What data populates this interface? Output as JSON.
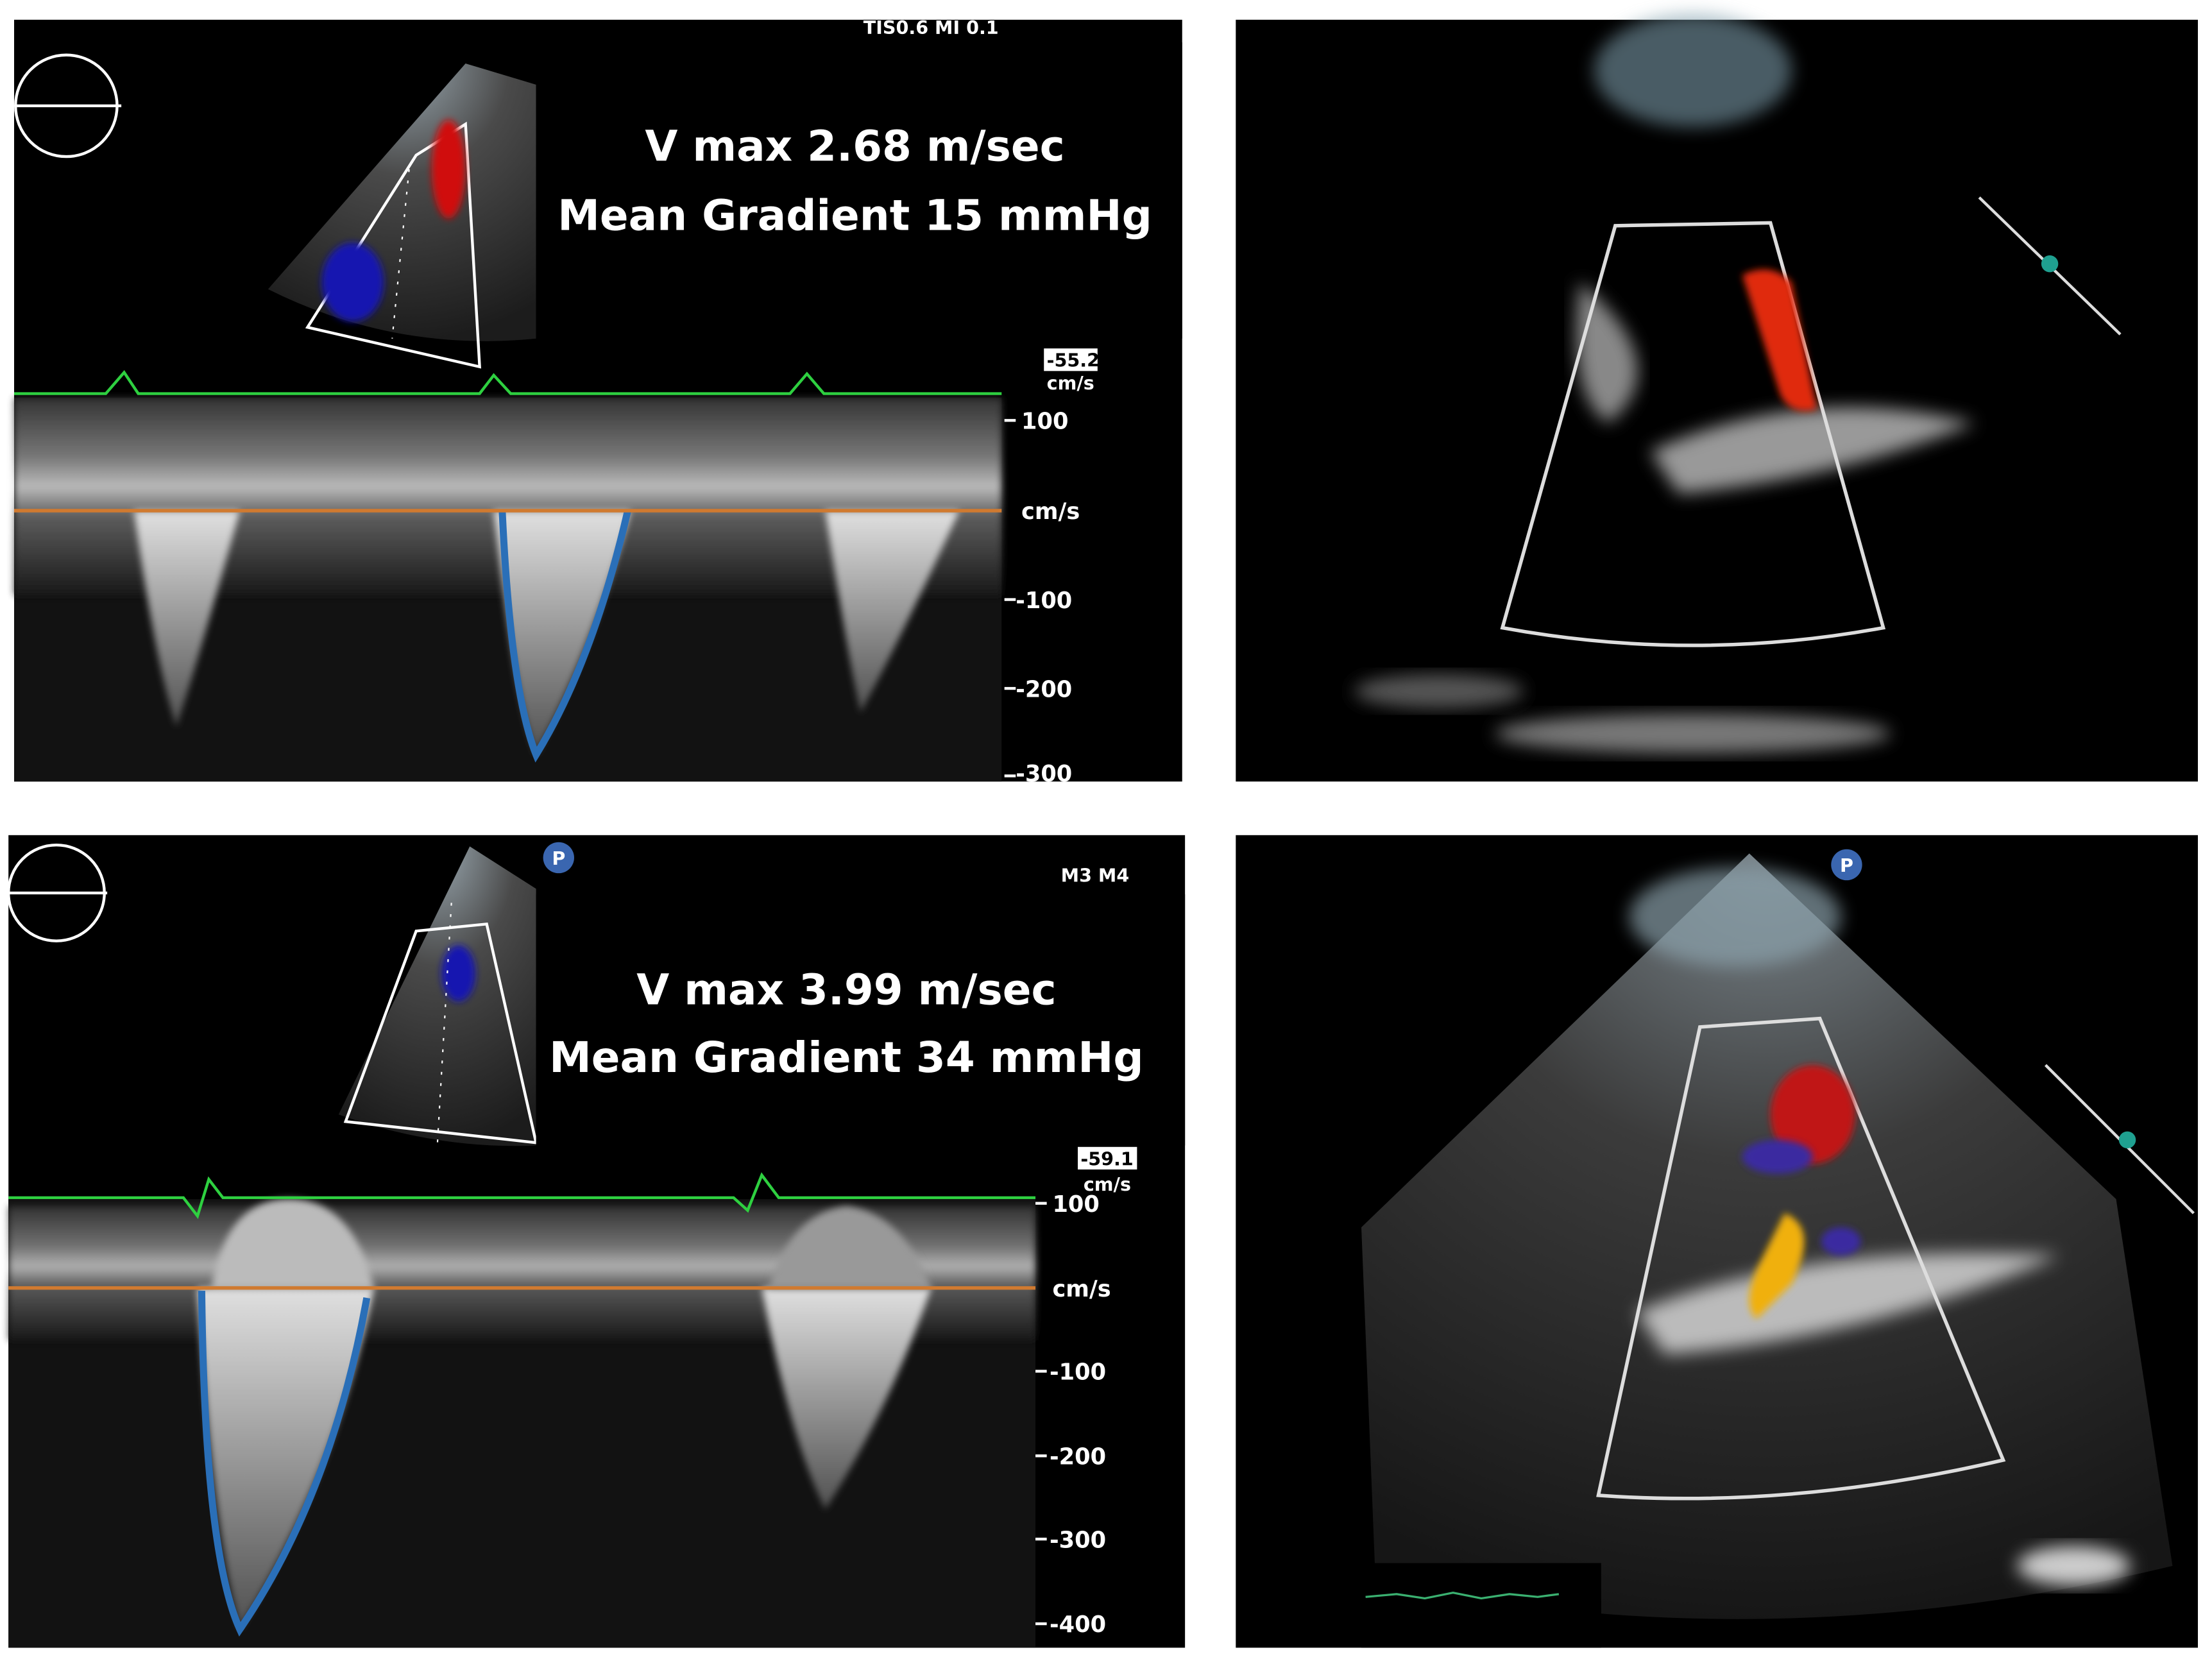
{
  "panels": {
    "top_left": {
      "status": "TIS0.6   MI 0.1",
      "vmax": "V max 2.68 m/sec",
      "gradient": "Mean Gradient 15 mmHg",
      "scale_value": "-55.2",
      "scale_unit": "cm/s",
      "ticks": [
        "100",
        "cm/s",
        "-100",
        "-200",
        "-300"
      ]
    },
    "bottom_left": {
      "status": "M3 M4",
      "probe_icon": "P",
      "vmax": "V max 3.99 m/sec",
      "gradient": "Mean Gradient 34 mmHg",
      "scale_value": "-59.1",
      "scale_unit": "cm/s",
      "ticks": [
        "100",
        "cm/s",
        "-100",
        "-200",
        "-300",
        "-400"
      ]
    },
    "bottom_right": {
      "probe_icon": "P"
    }
  }
}
